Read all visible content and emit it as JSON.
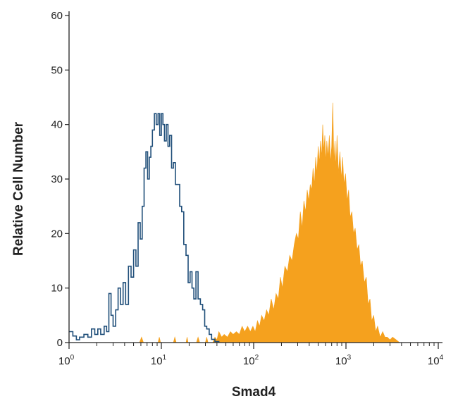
{
  "chart_data": {
    "type": "area",
    "xlabel": "Smad4",
    "ylabel": "Relative Cell Number",
    "x_scale": "log",
    "xlim": [
      1,
      10000
    ],
    "ylim": [
      0,
      60
    ],
    "grid": false,
    "legend": "none",
    "x_ticks": [
      {
        "value": 1,
        "base": "10",
        "exp": "0"
      },
      {
        "value": 10,
        "base": "10",
        "exp": "1"
      },
      {
        "value": 100,
        "base": "10",
        "exp": "2"
      },
      {
        "value": 1000,
        "base": "10",
        "exp": "3"
      },
      {
        "value": 10000,
        "base": "10",
        "exp": "4"
      }
    ],
    "y_ticks": [
      0,
      10,
      20,
      30,
      40,
      50,
      60
    ],
    "colors": {
      "control": "#1f4e79",
      "stained": "#f5a11e",
      "axis": "#222222"
    },
    "series": [
      {
        "style": "outline",
        "color": "#1f4e79",
        "points": [
          [
            1.0,
            2
          ],
          [
            1.1,
            1.2
          ],
          [
            1.2,
            0.5
          ],
          [
            1.3,
            1
          ],
          [
            1.45,
            1.5
          ],
          [
            1.6,
            1
          ],
          [
            1.75,
            2.5
          ],
          [
            1.9,
            1.5
          ],
          [
            2.05,
            2.5
          ],
          [
            2.2,
            1.5
          ],
          [
            2.4,
            3
          ],
          [
            2.55,
            2
          ],
          [
            2.7,
            9
          ],
          [
            2.85,
            5
          ],
          [
            3.0,
            3
          ],
          [
            3.2,
            6
          ],
          [
            3.4,
            10
          ],
          [
            3.6,
            7
          ],
          [
            3.85,
            11
          ],
          [
            4.1,
            7
          ],
          [
            4.4,
            14
          ],
          [
            4.7,
            12
          ],
          [
            5.0,
            17
          ],
          [
            5.3,
            14
          ],
          [
            5.6,
            22
          ],
          [
            5.9,
            19
          ],
          [
            6.2,
            25
          ],
          [
            6.5,
            32
          ],
          [
            6.8,
            35
          ],
          [
            7.1,
            30
          ],
          [
            7.4,
            34
          ],
          [
            7.7,
            36
          ],
          [
            8.0,
            39
          ],
          [
            8.4,
            42
          ],
          [
            8.8,
            40
          ],
          [
            9.2,
            42
          ],
          [
            9.6,
            38
          ],
          [
            10.0,
            42
          ],
          [
            10.4,
            40
          ],
          [
            10.8,
            37
          ],
          [
            11.3,
            40
          ],
          [
            11.8,
            36
          ],
          [
            12.3,
            38
          ],
          [
            12.9,
            32
          ],
          [
            13.5,
            33
          ],
          [
            14.2,
            29
          ],
          [
            15.0,
            29
          ],
          [
            15.8,
            25
          ],
          [
            16.6,
            24
          ],
          [
            17.5,
            18
          ],
          [
            18.5,
            16
          ],
          [
            19.5,
            11
          ],
          [
            20.5,
            13
          ],
          [
            21.5,
            10
          ],
          [
            22.5,
            8
          ],
          [
            23.7,
            13
          ],
          [
            25,
            8
          ],
          [
            26.5,
            7
          ],
          [
            28,
            6
          ],
          [
            29.5,
            3
          ],
          [
            31,
            2.5
          ],
          [
            33,
            1.5
          ],
          [
            35,
            0.6
          ],
          [
            38,
            0.2
          ],
          [
            42,
            0
          ]
        ]
      },
      {
        "style": "filled",
        "color": "#f5a11e",
        "points": [
          [
            5.8,
            0
          ],
          [
            6.1,
            1
          ],
          [
            6.4,
            0
          ],
          [
            9.2,
            0
          ],
          [
            9.5,
            1
          ],
          [
            9.8,
            0
          ],
          [
            13.5,
            0
          ],
          [
            14,
            1
          ],
          [
            14.5,
            0
          ],
          [
            18.5,
            0
          ],
          [
            19,
            1
          ],
          [
            19.5,
            0
          ],
          [
            24,
            0
          ],
          [
            25,
            1
          ],
          [
            26,
            0
          ],
          [
            30,
            0
          ],
          [
            31,
            1
          ],
          [
            32,
            0
          ],
          [
            36,
            0
          ],
          [
            38,
            1
          ],
          [
            40,
            0.5
          ],
          [
            42,
            2
          ],
          [
            45,
            1
          ],
          [
            48,
            1.5
          ],
          [
            52,
            1
          ],
          [
            56,
            2
          ],
          [
            60,
            1.5
          ],
          [
            65,
            2
          ],
          [
            70,
            1.5
          ],
          [
            75,
            3
          ],
          [
            80,
            2
          ],
          [
            86,
            3
          ],
          [
            92,
            2
          ],
          [
            98,
            3
          ],
          [
            104,
            2
          ],
          [
            110,
            4
          ],
          [
            116,
            3
          ],
          [
            122,
            5
          ],
          [
            130,
            4
          ],
          [
            138,
            6
          ],
          [
            146,
            5
          ],
          [
            155,
            8
          ],
          [
            165,
            6
          ],
          [
            175,
            9
          ],
          [
            185,
            8
          ],
          [
            195,
            12
          ],
          [
            205,
            10
          ],
          [
            218,
            14
          ],
          [
            232,
            13
          ],
          [
            246,
            16
          ],
          [
            260,
            15
          ],
          [
            275,
            18
          ],
          [
            290,
            20
          ],
          [
            305,
            19
          ],
          [
            320,
            24
          ],
          [
            335,
            21
          ],
          [
            350,
            26
          ],
          [
            365,
            24
          ],
          [
            380,
            28
          ],
          [
            395,
            26
          ],
          [
            410,
            29
          ],
          [
            425,
            28
          ],
          [
            440,
            32
          ],
          [
            455,
            29
          ],
          [
            470,
            34
          ],
          [
            485,
            31
          ],
          [
            500,
            36
          ],
          [
            515,
            33
          ],
          [
            530,
            37
          ],
          [
            545,
            34
          ],
          [
            560,
            40
          ],
          [
            575,
            35
          ],
          [
            590,
            38
          ],
          [
            605,
            33
          ],
          [
            620,
            37
          ],
          [
            640,
            34
          ],
          [
            660,
            38
          ],
          [
            680,
            33
          ],
          [
            700,
            36
          ],
          [
            720,
            44
          ],
          [
            740,
            33
          ],
          [
            760,
            37
          ],
          [
            780,
            32
          ],
          [
            800,
            38
          ],
          [
            830,
            31
          ],
          [
            860,
            35
          ],
          [
            890,
            30
          ],
          [
            920,
            34
          ],
          [
            950,
            29
          ],
          [
            990,
            31
          ],
          [
            1030,
            26
          ],
          [
            1070,
            28
          ],
          [
            1110,
            23
          ],
          [
            1160,
            24
          ],
          [
            1210,
            20
          ],
          [
            1260,
            21
          ],
          [
            1320,
            17
          ],
          [
            1380,
            18
          ],
          [
            1440,
            14
          ],
          [
            1500,
            15
          ],
          [
            1580,
            11
          ],
          [
            1660,
            12
          ],
          [
            1740,
            7
          ],
          [
            1820,
            8
          ],
          [
            1900,
            4
          ],
          [
            2000,
            5
          ],
          [
            2100,
            2
          ],
          [
            2200,
            3
          ],
          [
            2350,
            1
          ],
          [
            2500,
            2
          ],
          [
            2650,
            1
          ],
          [
            2800,
            1
          ],
          [
            3000,
            0.5
          ],
          [
            3200,
            1
          ],
          [
            3500,
            0.5
          ],
          [
            3800,
            0
          ]
        ]
      }
    ]
  }
}
